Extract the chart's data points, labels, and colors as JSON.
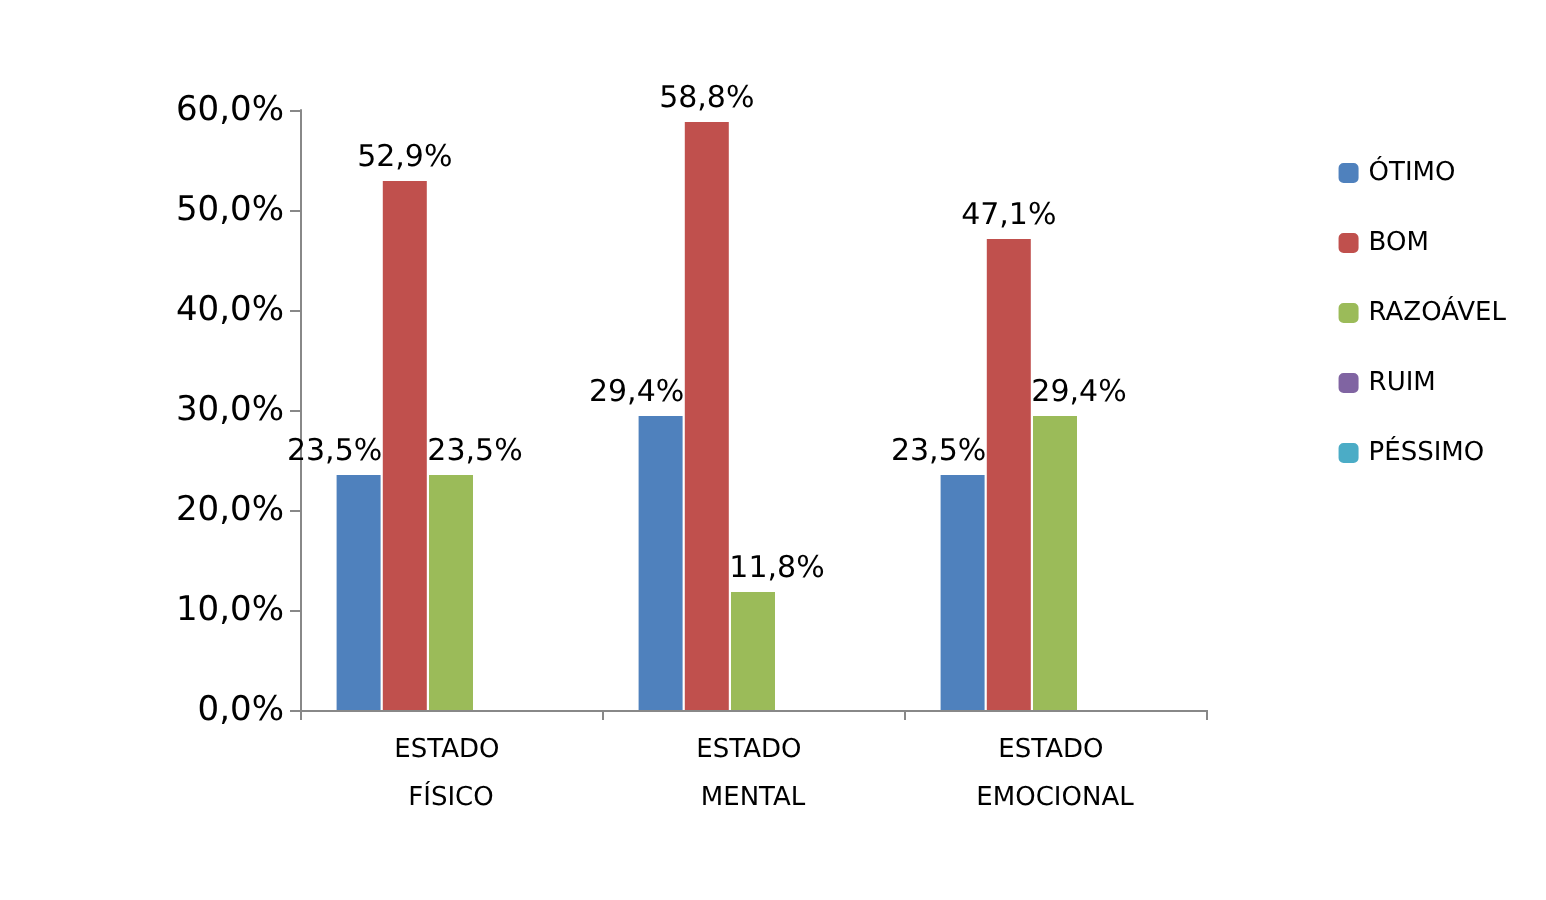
{
  "chart_data": {
    "type": "bar",
    "categories": [
      "ESTADO FÍSICO",
      "ESTADO MENTAL",
      "ESTADO EMOCIONAL"
    ],
    "series": [
      {
        "name": "ÓTIMO",
        "color": "#4f81bd",
        "values": [
          23.5,
          29.4,
          23.5
        ],
        "value_labels": [
          "23,5%",
          "29,4%",
          "23,5%"
        ]
      },
      {
        "name": "BOM",
        "color": "#c0504d",
        "values": [
          52.9,
          58.8,
          47.1
        ],
        "value_labels": [
          "52,9%",
          "58,8%",
          "47,1%"
        ]
      },
      {
        "name": "RAZOÁVEL",
        "color": "#9bbb59",
        "values": [
          23.5,
          11.8,
          29.4
        ],
        "value_labels": [
          "23,5%",
          "11,8%",
          "29,4%"
        ]
      },
      {
        "name": "RUIM",
        "color": "#8064a2",
        "values": [
          0,
          0,
          0
        ],
        "value_labels": [
          null,
          null,
          null
        ]
      },
      {
        "name": "PÉSSIMO",
        "color": "#4bacc6",
        "values": [
          0,
          0,
          0
        ],
        "value_labels": [
          null,
          null,
          null
        ]
      }
    ],
    "ylim": [
      0,
      60
    ],
    "yticks": [
      {
        "value": 0,
        "label": "0,0%"
      },
      {
        "value": 10,
        "label": "10,0%"
      },
      {
        "value": 20,
        "label": "20,0%"
      },
      {
        "value": 30,
        "label": "30,0%"
      },
      {
        "value": 40,
        "label": "40,0%"
      },
      {
        "value": 50,
        "label": "50,0%"
      },
      {
        "value": 60,
        "label": "60,0%"
      }
    ],
    "grid": false,
    "legend": "right"
  }
}
